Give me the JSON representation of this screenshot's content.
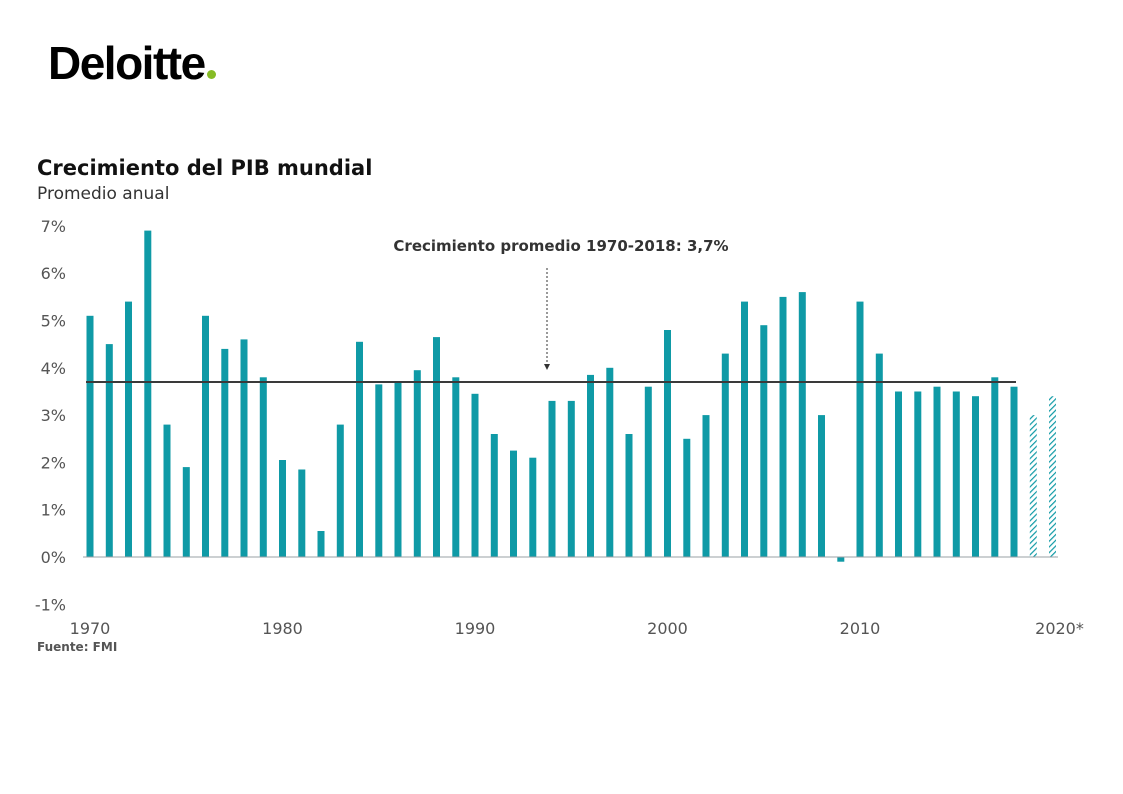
{
  "brand": {
    "name": "Deloitte",
    "dot_color": "#86bc25"
  },
  "chart_data": {
    "type": "bar",
    "title": "Crecimiento del PIB mundial",
    "subtitle": "Promedio anual",
    "source": "Fuente: FMI",
    "x_tick_labels": [
      "1970",
      "1980",
      "1990",
      "2000",
      "2010",
      "2020*"
    ],
    "y_tick_labels": [
      "-1%",
      "0%",
      "1%",
      "2%",
      "3%",
      "4%",
      "5%",
      "6%",
      "7%"
    ],
    "ylim": [
      -1,
      7
    ],
    "x": [
      1970,
      1971,
      1972,
      1973,
      1974,
      1975,
      1976,
      1977,
      1978,
      1979,
      1980,
      1981,
      1982,
      1983,
      1984,
      1985,
      1986,
      1987,
      1988,
      1989,
      1990,
      1991,
      1992,
      1993,
      1994,
      1995,
      1996,
      1997,
      1998,
      1999,
      2000,
      2001,
      2002,
      2003,
      2004,
      2005,
      2006,
      2007,
      2008,
      2009,
      2010,
      2011,
      2012,
      2013,
      2014,
      2015,
      2016,
      2017,
      2018,
      2019,
      2020
    ],
    "values": [
      5.1,
      4.5,
      5.4,
      6.9,
      2.8,
      1.9,
      5.1,
      4.4,
      4.6,
      3.8,
      2.05,
      1.85,
      0.55,
      2.8,
      4.55,
      3.65,
      3.7,
      3.95,
      4.65,
      3.8,
      3.45,
      2.6,
      2.25,
      2.1,
      3.3,
      3.3,
      3.85,
      4.0,
      2.6,
      3.6,
      4.8,
      2.5,
      3.0,
      4.3,
      5.4,
      4.9,
      5.5,
      5.6,
      3.0,
      -0.1,
      5.4,
      4.3,
      3.5,
      3.5,
      3.6,
      3.5,
      3.4,
      3.8,
      3.6,
      3.0,
      3.4
    ],
    "forecast_years": [
      2019,
      2020
    ],
    "average": {
      "value": 3.7,
      "label": "Crecimiento promedio 1970-2018: 3,7%",
      "from": 1970,
      "to": 2018
    },
    "bar_color": "#0f9aa6",
    "average_line_color": "#3a3a3a"
  }
}
